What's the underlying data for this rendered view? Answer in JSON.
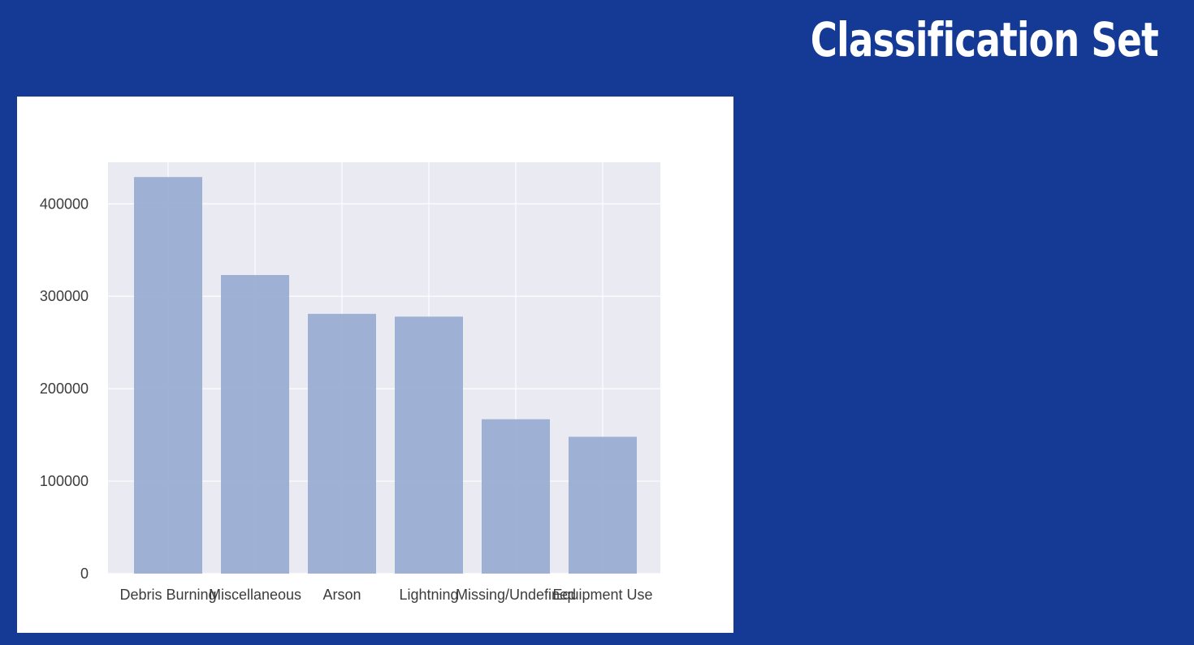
{
  "slide": {
    "title": "Classification Set"
  },
  "colors": {
    "background": "#143a96",
    "panel": "#ffffff",
    "plot_area": "#eaeaf2",
    "bar": "#9aaed2",
    "grid": "#ffffff"
  },
  "chart_data": {
    "type": "bar",
    "categories": [
      "Debris Burning",
      "Miscellaneous",
      "Arson",
      "Lightning",
      "Missing/Undefined",
      "Equipment Use"
    ],
    "values": [
      429000,
      323000,
      281000,
      278000,
      167000,
      148000
    ],
    "title": "",
    "xlabel": "",
    "ylabel": "",
    "ylim": [
      0,
      445000
    ],
    "yticks": [
      0,
      100000,
      200000,
      300000,
      400000
    ],
    "ytick_labels": [
      "0",
      "100000",
      "200000",
      "300000",
      "400000"
    ],
    "grid": true,
    "legend": "none"
  }
}
